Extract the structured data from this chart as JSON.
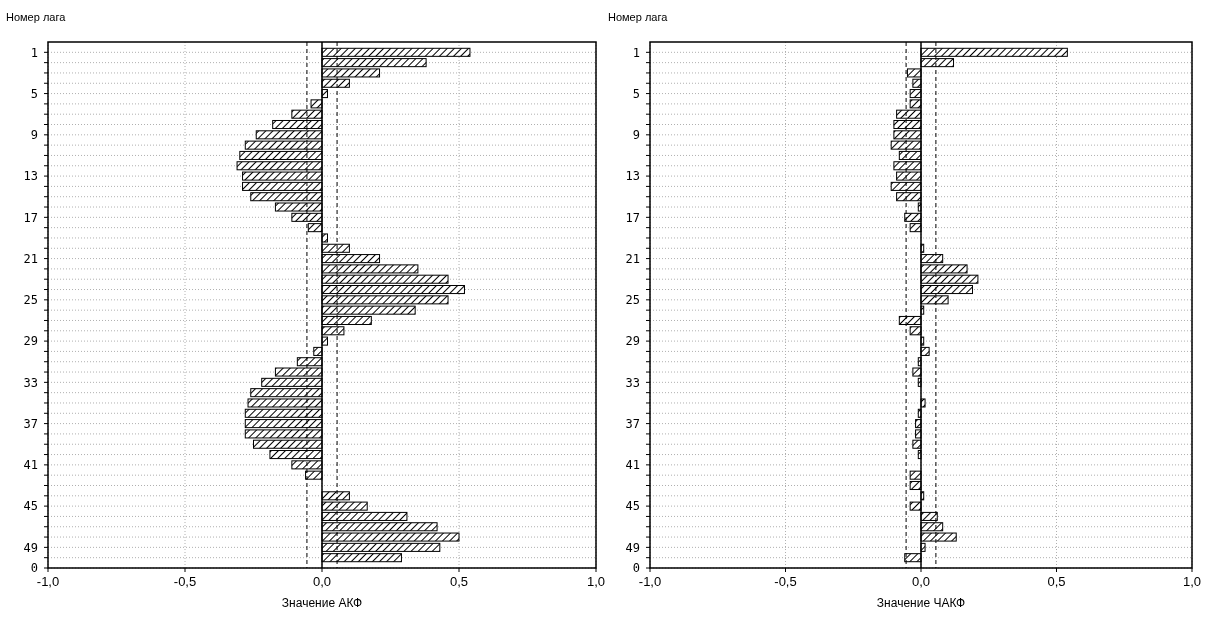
{
  "chart_data": [
    {
      "type": "bar",
      "orientation": "horizontal",
      "ylabel": "Номер лага",
      "xlabel": "Значение АКФ",
      "categories": [
        "1",
        null,
        null,
        null,
        "5",
        null,
        null,
        null,
        "9",
        null,
        null,
        null,
        "13",
        null,
        null,
        null,
        "17",
        null,
        null,
        null,
        "21",
        null,
        null,
        null,
        "25",
        null,
        null,
        null,
        "29",
        null,
        null,
        null,
        "33",
        null,
        null,
        null,
        "37",
        null,
        null,
        null,
        "41",
        null,
        null,
        null,
        "45",
        null,
        null,
        null,
        "49",
        null,
        "0"
      ],
      "series": [
        {
          "color": "#000000",
          "values": [
            0.54,
            0.38,
            0.21,
            0.1,
            0.02,
            -0.04,
            -0.11,
            -0.18,
            -0.24,
            -0.28,
            -0.3,
            -0.31,
            -0.29,
            -0.29,
            -0.26,
            -0.17,
            -0.11,
            -0.05,
            0.02,
            0.1,
            0.21,
            0.35,
            0.46,
            0.52,
            0.46,
            0.34,
            0.18,
            0.08,
            0.02,
            -0.03,
            -0.09,
            -0.17,
            -0.22,
            -0.26,
            -0.27,
            -0.28,
            -0.28,
            -0.28,
            -0.25,
            -0.19,
            -0.11,
            -0.06,
            0.0,
            0.1,
            0.165,
            0.31,
            0.42,
            0.5,
            0.43,
            0.29,
            null
          ]
        }
      ],
      "xlim": [
        -1,
        1
      ],
      "xticks": [
        {
          "value": -1,
          "label": "-1,0"
        },
        {
          "value": -0.5,
          "label": "-0,5"
        },
        {
          "value": 0,
          "label": "0,0"
        },
        {
          "value": 0.5,
          "label": "0,5"
        },
        {
          "value": 1,
          "label": "1,0"
        }
      ],
      "ref_lines": [
        {
          "axis": "x",
          "value": -0.055,
          "line_style": "dashed",
          "color": "#000000"
        },
        {
          "axis": "x",
          "value": 0.055,
          "line_style": "dashed",
          "color": "#000000"
        }
      ],
      "grid": true
    },
    {
      "type": "bar",
      "orientation": "horizontal",
      "ylabel": "Номер лага",
      "xlabel": "Значение ЧАКФ",
      "categories": [
        "1",
        null,
        null,
        null,
        "5",
        null,
        null,
        null,
        "9",
        null,
        null,
        null,
        "13",
        null,
        null,
        null,
        "17",
        null,
        null,
        null,
        "21",
        null,
        null,
        null,
        "25",
        null,
        null,
        null,
        "29",
        null,
        null,
        null,
        "33",
        null,
        null,
        null,
        "37",
        null,
        null,
        null,
        "41",
        null,
        null,
        null,
        "45",
        null,
        null,
        null,
        "49",
        null,
        "0"
      ],
      "series": [
        {
          "color": "#000000",
          "values": [
            0.54,
            0.12,
            -0.05,
            -0.03,
            -0.04,
            -0.04,
            -0.09,
            -0.1,
            -0.1,
            -0.11,
            -0.08,
            -0.1,
            -0.09,
            -0.11,
            -0.09,
            -0.01,
            -0.06,
            -0.04,
            0.0,
            0.01,
            0.08,
            0.17,
            0.21,
            0.19,
            0.1,
            0.01,
            -0.08,
            -0.04,
            0.01,
            0.03,
            -0.01,
            -0.03,
            -0.01,
            0.0,
            0.015,
            -0.01,
            -0.02,
            -0.02,
            -0.03,
            -0.01,
            0.0,
            -0.04,
            -0.04,
            0.01,
            -0.04,
            0.06,
            0.08,
            0.13,
            0.015,
            -0.06,
            null
          ]
        }
      ],
      "xlim": [
        -1,
        1
      ],
      "xticks": [
        {
          "value": -1,
          "label": "-1,0"
        },
        {
          "value": -0.5,
          "label": "-0,5"
        },
        {
          "value": 0,
          "label": "0,0"
        },
        {
          "value": 0.5,
          "label": "0,5"
        },
        {
          "value": 1,
          "label": "1,0"
        }
      ],
      "ref_lines": [
        {
          "axis": "x",
          "value": -0.055,
          "line_style": "dashed",
          "color": "#000000"
        },
        {
          "axis": "x",
          "value": 0.055,
          "line_style": "dashed",
          "color": "#000000"
        }
      ],
      "grid": true
    }
  ]
}
